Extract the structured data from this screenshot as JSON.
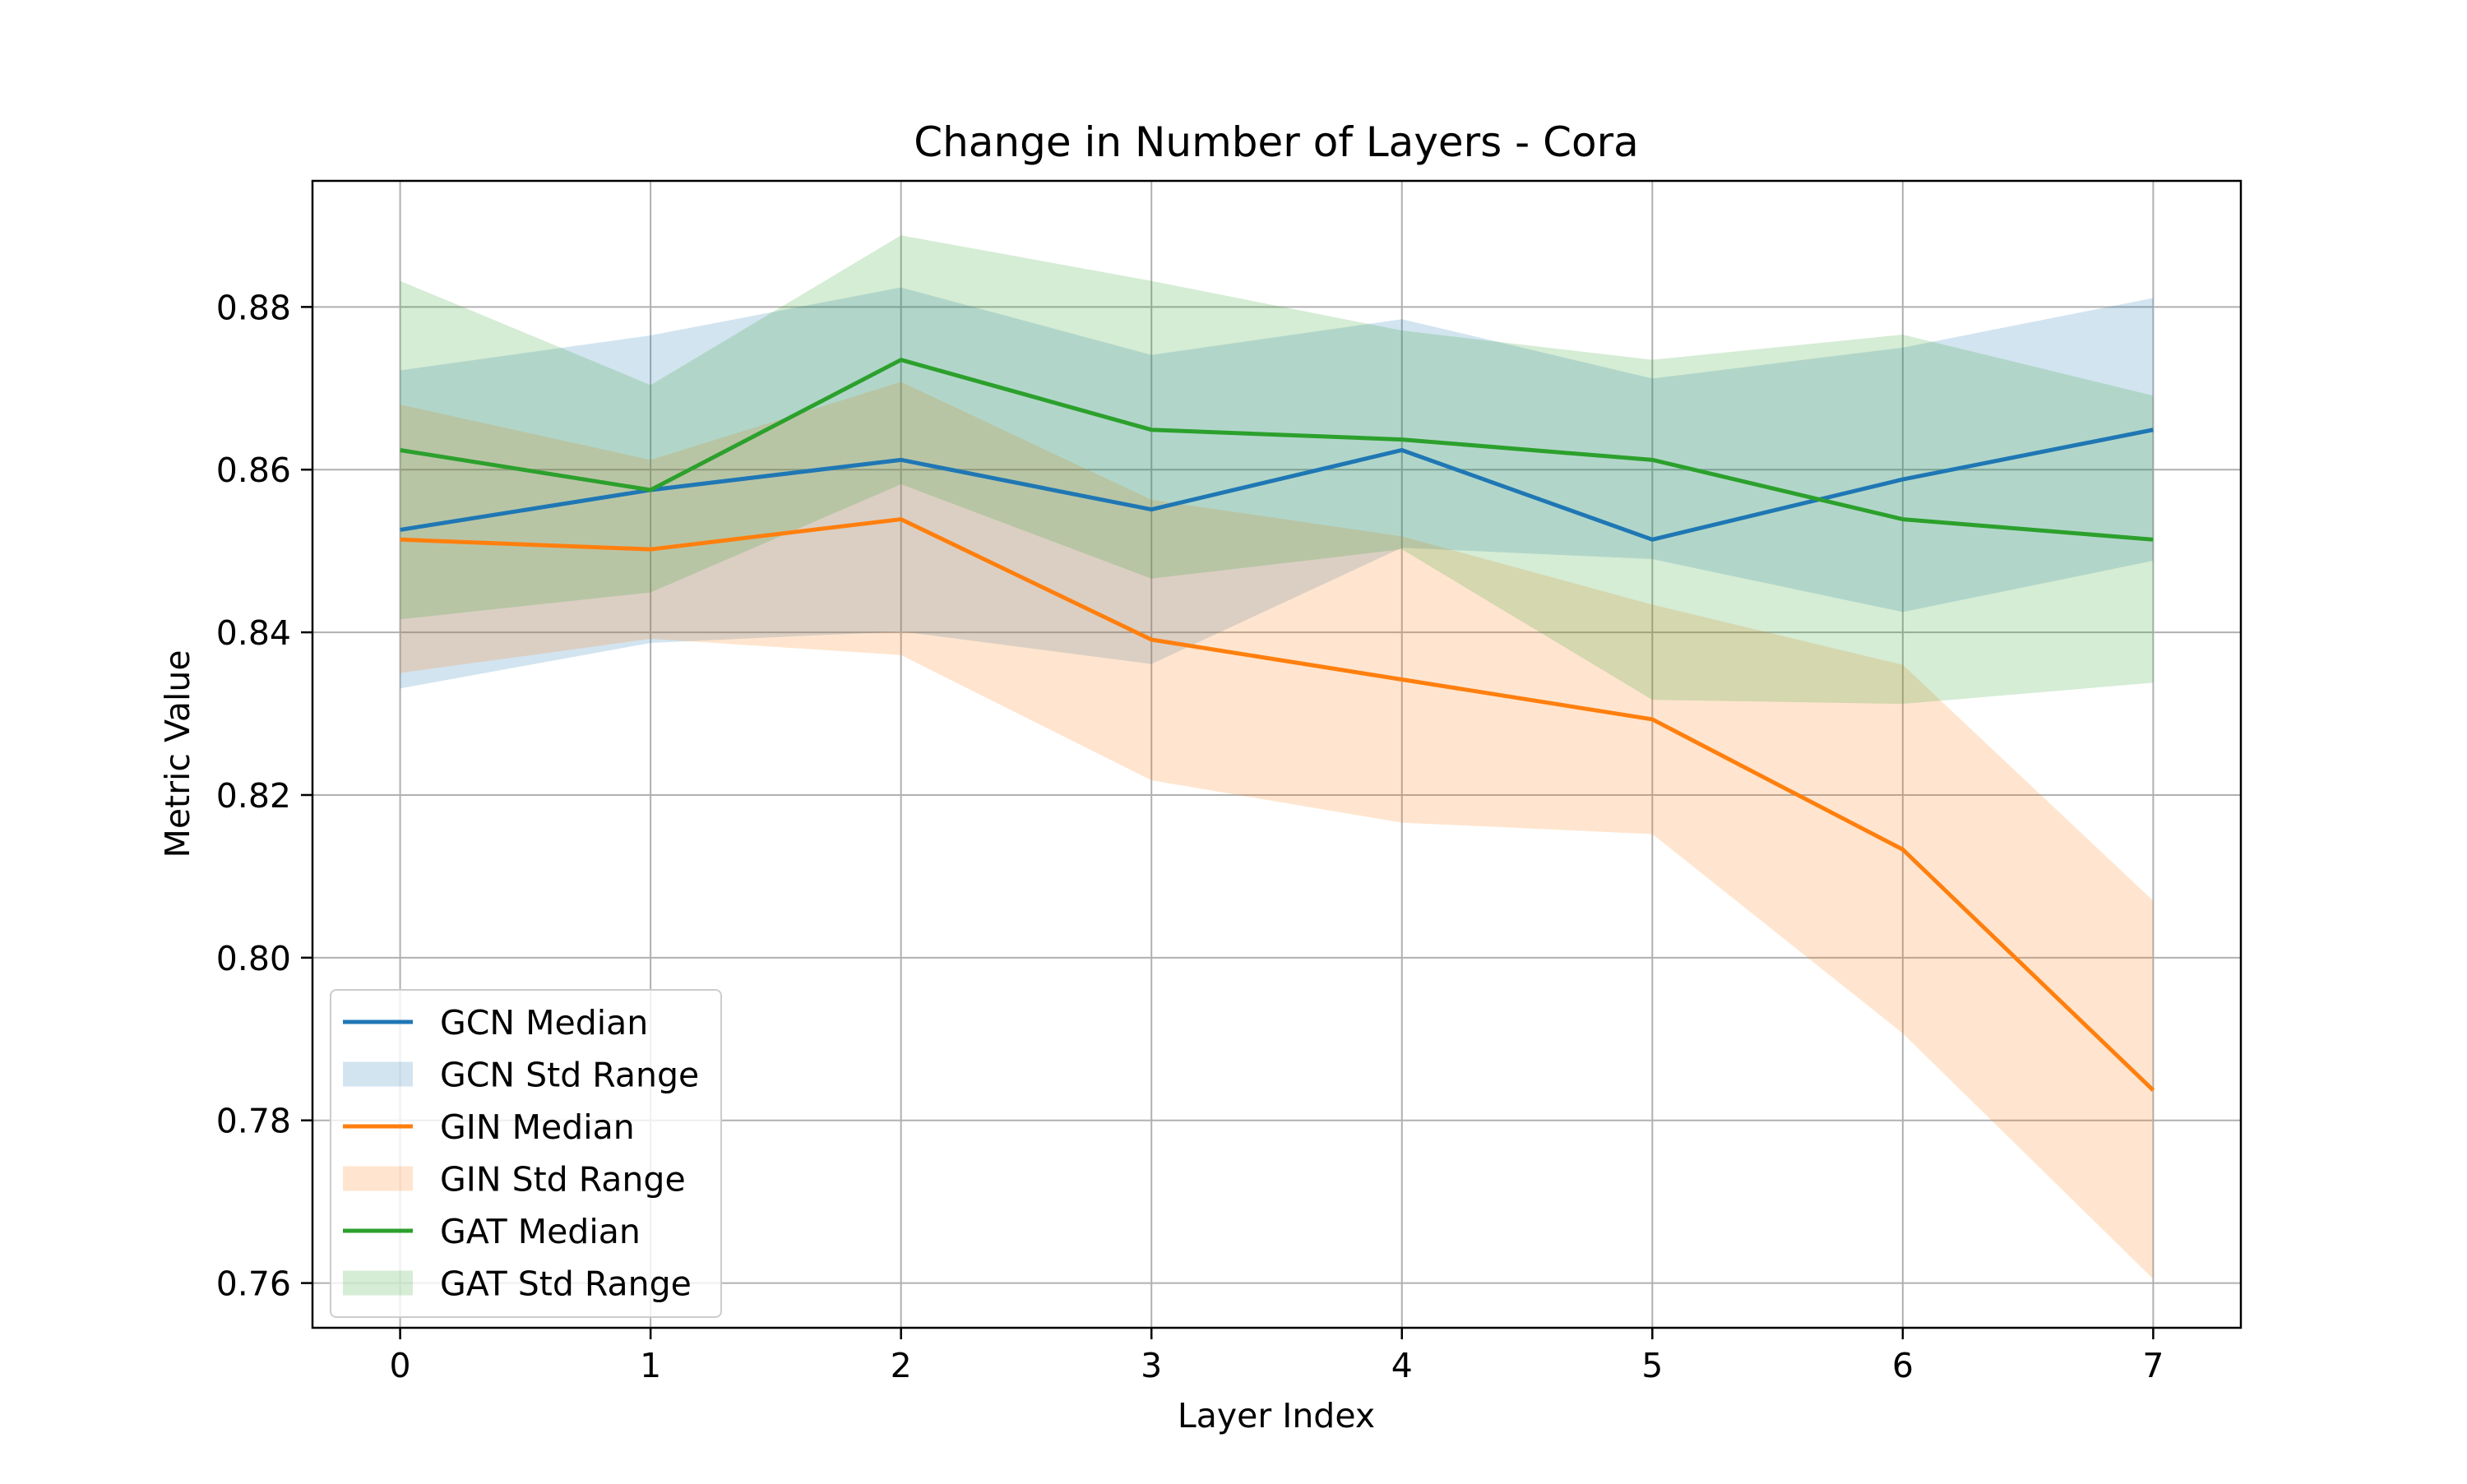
{
  "chart_data": {
    "type": "line",
    "title": "Change in Number of Layers - Cora",
    "xlabel": "Layer Index",
    "ylabel": "Metric Value",
    "x": [
      0,
      1,
      2,
      3,
      4,
      5,
      6,
      7
    ],
    "xlim": [
      -0.35,
      7.35
    ],
    "ylim": [
      0.7545,
      0.8955
    ],
    "xticks": [
      0,
      1,
      2,
      3,
      4,
      5,
      6,
      7
    ],
    "yticks": [
      0.76,
      0.78,
      0.8,
      0.82,
      0.84,
      0.86,
      0.88
    ],
    "ytick_labels": [
      "0.76",
      "0.78",
      "0.80",
      "0.82",
      "0.84",
      "0.86",
      "0.88"
    ],
    "grid": true,
    "legend_position": "lower-left",
    "series": [
      {
        "name": "GCN Median",
        "band_name": "GCN Std Range",
        "color": "#1f77b4",
        "median": [
          0.8526,
          0.8575,
          0.8612,
          0.8551,
          0.8624,
          0.8514,
          0.8588,
          0.8649
        ],
        "upper": [
          0.8722,
          0.8765,
          0.8824,
          0.8741,
          0.8785,
          0.8712,
          0.875,
          0.8811
        ],
        "lower": [
          0.8331,
          0.8387,
          0.8401,
          0.8361,
          0.8504,
          0.849,
          0.8425,
          0.8488
        ]
      },
      {
        "name": "GIN Median",
        "band_name": "GIN Std Range",
        "color": "#ff7f0e",
        "median": [
          0.8514,
          0.8502,
          0.8539,
          0.8391,
          0.8342,
          0.8293,
          0.8133,
          0.7837
        ],
        "upper": [
          0.868,
          0.8612,
          0.8708,
          0.8563,
          0.8518,
          0.8434,
          0.836,
          0.807
        ],
        "lower": [
          0.835,
          0.8392,
          0.8372,
          0.8218,
          0.8166,
          0.8152,
          0.7907,
          0.7605
        ]
      },
      {
        "name": "GAT Median",
        "band_name": "GAT Std Range",
        "color": "#2ca02c",
        "median": [
          0.8624,
          0.8575,
          0.8735,
          0.8649,
          0.8637,
          0.8612,
          0.8539,
          0.8514
        ],
        "upper": [
          0.8832,
          0.8704,
          0.8888,
          0.8832,
          0.8771,
          0.8735,
          0.8766,
          0.8691
        ],
        "lower": [
          0.8416,
          0.8449,
          0.8582,
          0.8466,
          0.8502,
          0.8317,
          0.8312,
          0.8338
        ]
      }
    ]
  }
}
